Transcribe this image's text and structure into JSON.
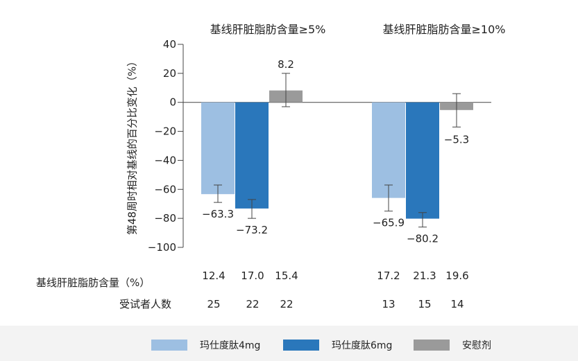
{
  "chart_data": {
    "type": "bar",
    "ylabel": "第48周时相对基线的百分比变化（%）",
    "ylim": [
      -100,
      40
    ],
    "yticks": [
      40,
      20,
      0,
      -20,
      -40,
      -60,
      -80,
      -100
    ],
    "ytick_labels": [
      "40",
      "20",
      "0",
      "−20",
      "−40",
      "−60",
      "−80",
      "−100"
    ],
    "groups": [
      "基线肝脏脂肪含量≥5%",
      "基线肝脏脂肪含量≥10%"
    ],
    "series": [
      {
        "name": "玛仕度肽4mg",
        "color": "#9dbfe2",
        "values": [
          -63.3,
          -65.9
        ],
        "value_labels": [
          "−63.3",
          "−65.9"
        ],
        "error_low": [
          -69,
          -75
        ],
        "error_high": [
          -57,
          -57
        ]
      },
      {
        "name": "玛仕度肽6mg",
        "color": "#2a77bb",
        "values": [
          -73.2,
          -80.2
        ],
        "value_labels": [
          "−73.2",
          "−80.2"
        ],
        "error_low": [
          -80,
          -86
        ],
        "error_high": [
          -67,
          -76
        ]
      },
      {
        "name": "安慰剂",
        "color": "#9a9a9a",
        "values": [
          8.2,
          -5.3
        ],
        "value_labels": [
          "8.2",
          "−5.3"
        ],
        "error_low": [
          -3,
          -17
        ],
        "error_high": [
          20,
          6
        ]
      }
    ],
    "baseline_fat_label": "基线肝脏脂肪含量（%）",
    "baseline_fat": [
      [
        "12.4",
        "17.0",
        "15.4"
      ],
      [
        "17.2",
        "21.3",
        "19.6"
      ]
    ],
    "subjects_label": "受试者人数",
    "subjects": [
      [
        "25",
        "22",
        "22"
      ],
      [
        "13",
        "15",
        "14"
      ]
    ]
  }
}
